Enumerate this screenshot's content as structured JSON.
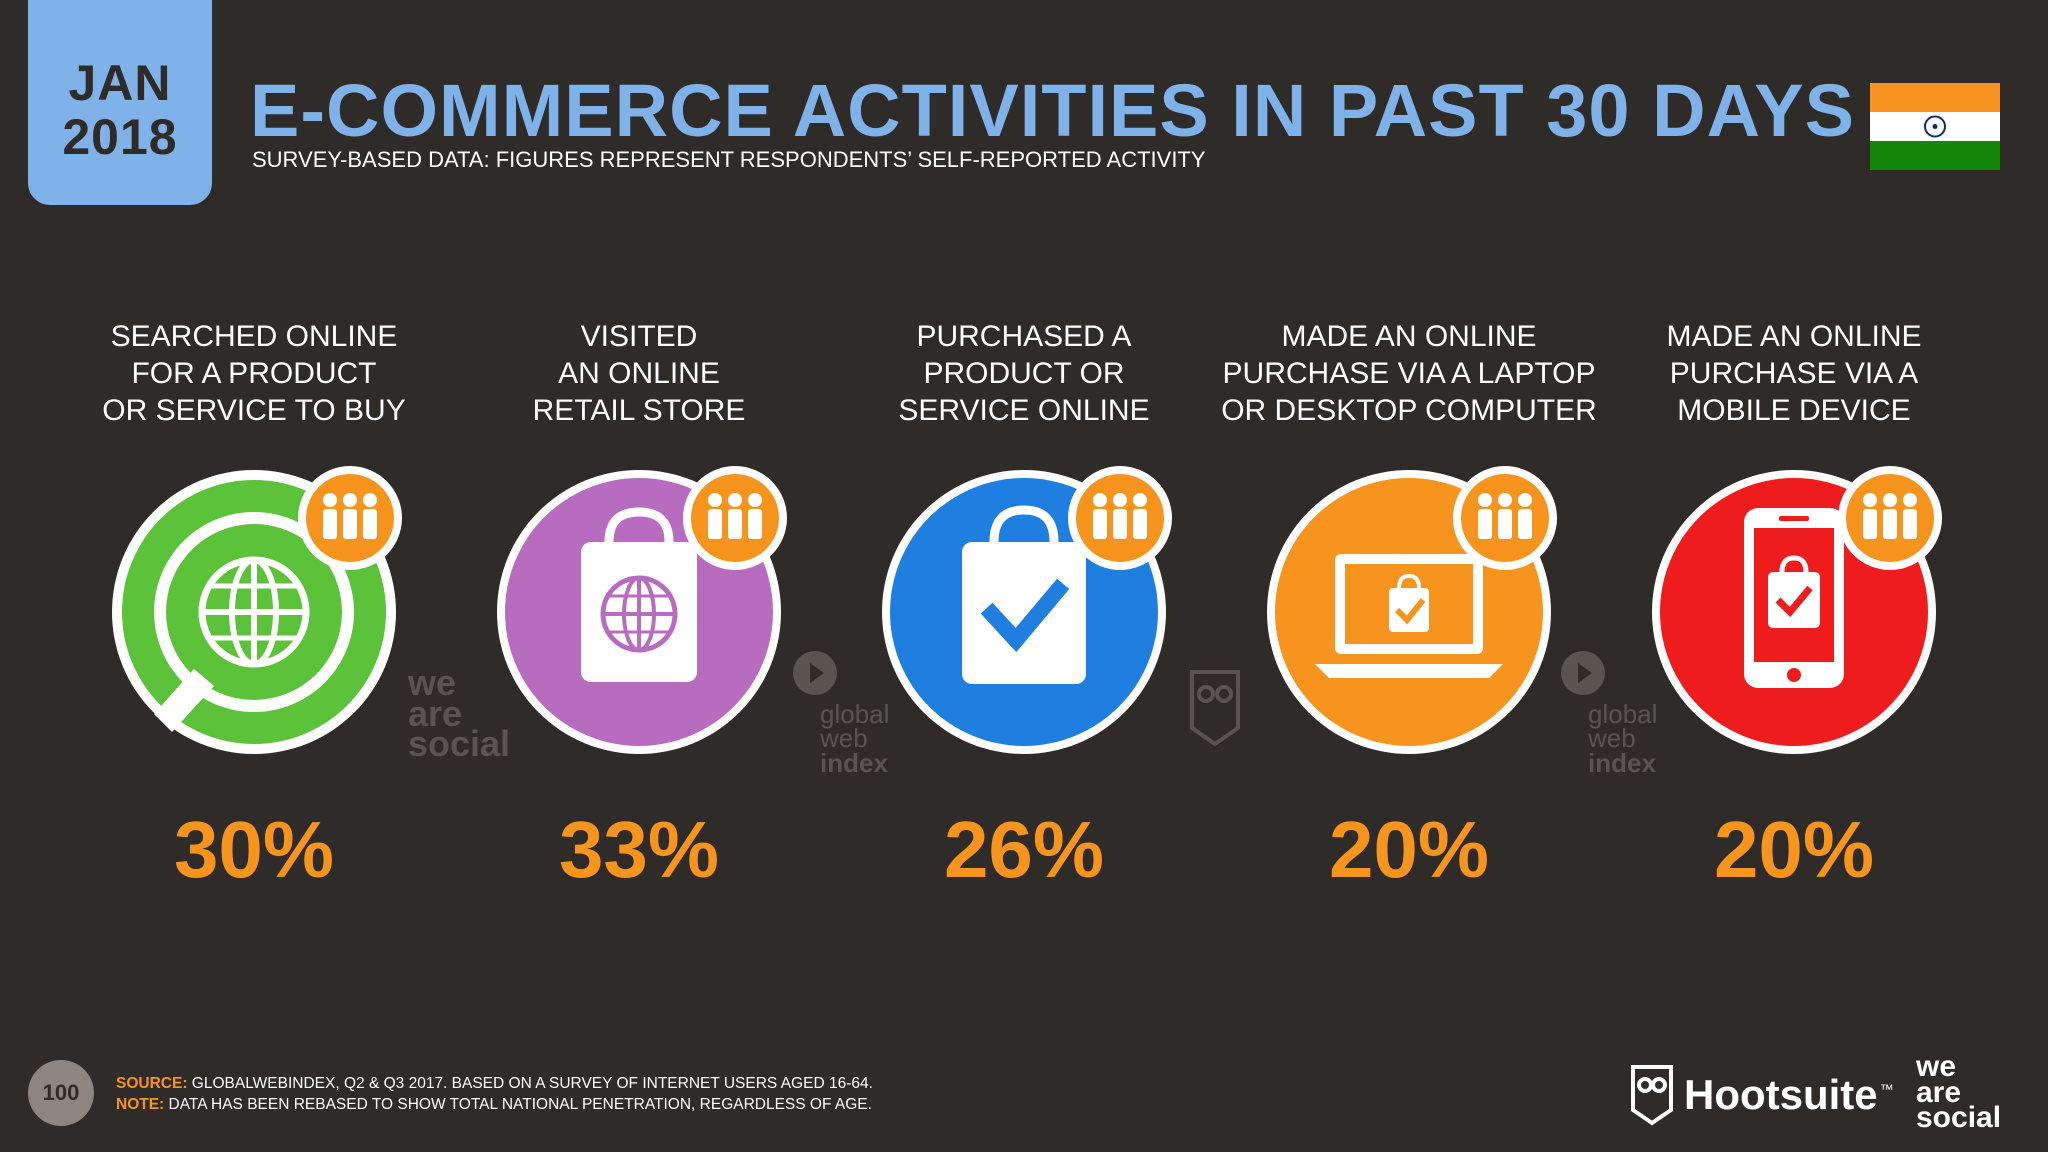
{
  "header": {
    "month": "JAN",
    "year": "2018",
    "title": "E-COMMERCE ACTIVITIES IN PAST 30 DAYS",
    "subtitle": "SURVEY-BASED DATA: FIGURES REPRESENT RESPONDENTS’ SELF-REPORTED ACTIVITY",
    "flag_icon": "india-flag-icon"
  },
  "items": [
    {
      "label_lines": [
        "SEARCHED ONLINE",
        "FOR A PRODUCT",
        "OR SERVICE TO BUY"
      ],
      "value": "30%",
      "icon": "globe-search-icon",
      "color": "#5cc23a"
    },
    {
      "label_lines": [
        "VISITED",
        "AN ONLINE",
        "RETAIL STORE"
      ],
      "value": "33%",
      "icon": "shopping-bag-globe-icon",
      "color": "#b86cc0"
    },
    {
      "label_lines": [
        "PURCHASED A",
        "PRODUCT OR",
        "SERVICE ONLINE"
      ],
      "value": "26%",
      "icon": "shopping-bag-check-icon",
      "color": "#1e7fe0"
    },
    {
      "label_lines": [
        "MADE AN ONLINE",
        "PURCHASE VIA A LAPTOP",
        "OR DESKTOP COMPUTER"
      ],
      "value": "20%",
      "icon": "laptop-bag-icon",
      "color": "#f7941d"
    },
    {
      "label_lines": [
        "MADE AN ONLINE",
        "PURCHASE VIA A",
        "MOBILE DEVICE"
      ],
      "value": "20%",
      "icon": "mobile-bag-icon",
      "color": "#ee1c1c"
    }
  ],
  "badge_color": "#f7941d",
  "watermarks": {
    "was": [
      "we",
      "are",
      "social"
    ],
    "gwi": [
      "global",
      "web",
      "index"
    ]
  },
  "footer": {
    "page_number": "100",
    "source_label": "SOURCE:",
    "source_text": "GLOBALWEBINDEX, Q2 & Q3 2017. BASED ON A SURVEY OF INTERNET USERS AGED 16-64.",
    "note_label": "NOTE:",
    "note_text": "DATA HAS BEEN REBASED TO SHOW TOTAL NATIONAL PENETRATION, REGARDLESS OF AGE.",
    "brand_hootsuite": "Hootsuite",
    "brand_tm": "™",
    "brand_was": [
      "we",
      "are",
      "social"
    ]
  },
  "colors": {
    "background": "#2f2b28",
    "accent_blue": "#7fb2e8",
    "accent_orange": "#f7941d"
  }
}
